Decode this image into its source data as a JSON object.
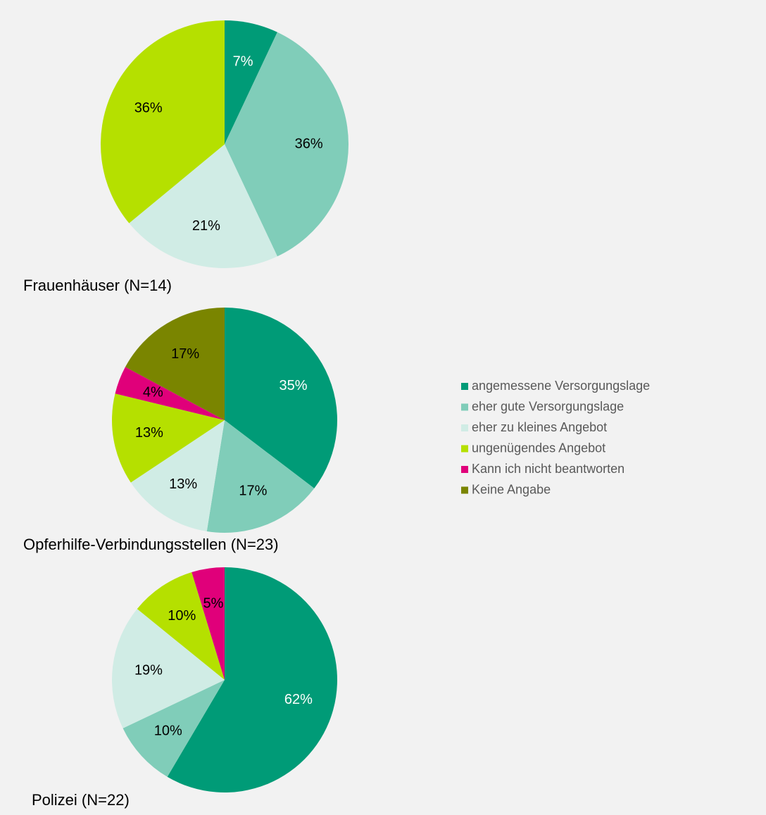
{
  "legend": [
    {
      "name": "angemessene Versorgungslage",
      "color": "#009b77"
    },
    {
      "name": "eher gute Versorgungslage",
      "color": "#80cdb9"
    },
    {
      "name": "eher zu kleines Angebot",
      "color": "#d0ece5"
    },
    {
      "name": "ungenügendes Angebot",
      "color": "#b5e000"
    },
    {
      "name": "Kann ich nicht beantworten",
      "color": "#e0007a"
    },
    {
      "name": "Keine Angabe",
      "color": "#7a8500"
    }
  ],
  "chart_data": [
    {
      "type": "pie",
      "title": "Frauenhäuser (N=14)",
      "categories": [
        "angemessene Versorgungslage",
        "eher gute Versorgungslage",
        "eher zu kleines Angebot",
        "ungenügendes Angebot"
      ],
      "values": [
        7,
        36,
        21,
        36
      ],
      "value_labels": [
        "7%",
        "36%",
        "21%",
        "36%"
      ]
    },
    {
      "type": "pie",
      "title": "Opferhilfe-Verbindungsstellen (N=23)",
      "categories": [
        "angemessene Versorgungslage",
        "eher gute Versorgungslage",
        "eher zu kleines Angebot",
        "ungenügendes Angebot",
        "Kann ich nicht beantworten",
        "Keine Angabe"
      ],
      "values": [
        35,
        17,
        13,
        13,
        4,
        17
      ],
      "value_labels": [
        "35%",
        "17%",
        "13%",
        "13%",
        "4%",
        "17%"
      ]
    },
    {
      "type": "pie",
      "title": "Polizei (N=22)",
      "categories": [
        "angemessene Versorgungslage",
        "eher gute Versorgungslage",
        "eher zu kleines Angebot",
        "ungenügendes Angebot",
        "Kann ich nicht beantworten"
      ],
      "values": [
        62,
        10,
        19,
        10,
        5
      ],
      "value_labels": [
        "62%",
        "10%",
        "19%",
        "10%",
        "5%"
      ]
    }
  ]
}
